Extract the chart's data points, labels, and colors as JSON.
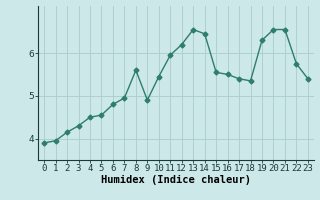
{
  "x": [
    0,
    1,
    2,
    3,
    4,
    5,
    6,
    7,
    8,
    9,
    10,
    11,
    12,
    13,
    14,
    15,
    16,
    17,
    18,
    19,
    20,
    21,
    22,
    23
  ],
  "y": [
    3.9,
    3.95,
    4.15,
    4.3,
    4.5,
    4.55,
    4.8,
    4.95,
    5.6,
    4.9,
    5.45,
    5.95,
    6.2,
    6.55,
    6.45,
    5.55,
    5.5,
    5.4,
    5.35,
    6.3,
    6.55,
    6.55,
    5.75,
    5.4
  ],
  "line_color": "#2e7d6e",
  "marker": "D",
  "marker_size": 2.5,
  "bg_color": "#cce8e8",
  "grid_color": "#aacccc",
  "xlabel": "Humidex (Indice chaleur)",
  "yticks": [
    4,
    5,
    6
  ],
  "ylim": [
    3.5,
    7.1
  ],
  "xlim": [
    -0.5,
    23.5
  ],
  "xlabel_fontsize": 7.5,
  "tick_fontsize": 6.5,
  "line_width": 1.0
}
